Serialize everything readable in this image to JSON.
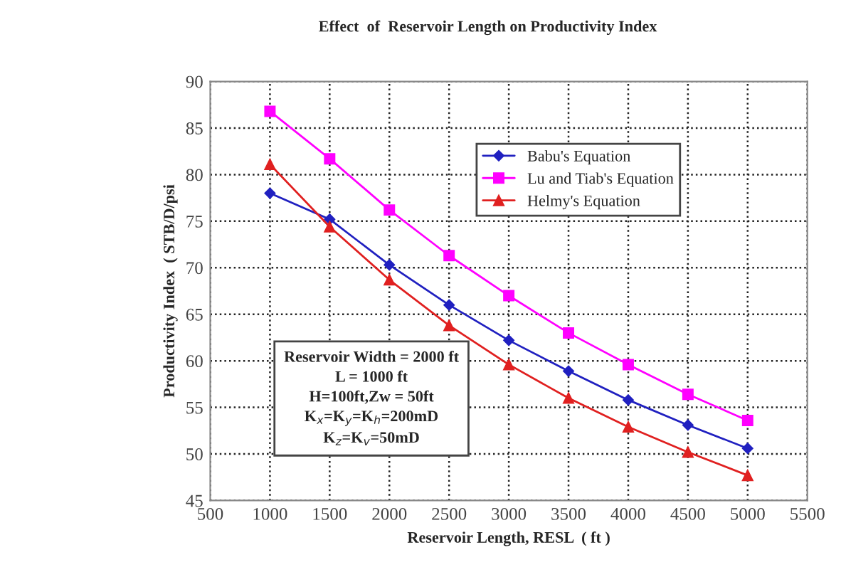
{
  "chart_data": {
    "type": "line",
    "title": "Effect  of  Reservoir Length on Productivity Index",
    "xlabel": "Reservoir Length, RESL  ( ft )",
    "ylabel": "Productivity Index  ( STB/D/psi",
    "x": [
      1000,
      1500,
      2000,
      2500,
      3000,
      3500,
      4000,
      4500,
      5000
    ],
    "series": [
      {
        "name": "Babu's Equation",
        "color": "#2020c0",
        "marker": "diamond",
        "values": [
          78.0,
          75.2,
          70.3,
          66.0,
          62.2,
          58.9,
          55.8,
          53.1,
          50.6
        ]
      },
      {
        "name": "Lu and Tiab's Equation",
        "color": "#ff00ff",
        "marker": "square",
        "values": [
          86.8,
          81.7,
          76.2,
          71.3,
          67.0,
          63.0,
          59.6,
          56.4,
          53.6
        ]
      },
      {
        "name": "Helmy's Equation",
        "color": "#e02020",
        "marker": "triangle",
        "values": [
          81.1,
          74.4,
          68.7,
          63.8,
          59.6,
          56.0,
          52.9,
          50.2,
          47.7
        ]
      }
    ],
    "annotations": [
      "Reservoir Width = 2000 ft",
      "L = 1000 ft",
      "H=100ft,Zw = 50ft",
      "K$_{x}$=K$_{y}$=K$_{h}$=200mD",
      "K$_{z}$=K$_{v}$=50mD"
    ],
    "xlim": [
      500,
      5500
    ],
    "xticks": [
      500,
      1000,
      1500,
      2000,
      2500,
      3000,
      3500,
      4000,
      4500,
      5000,
      5500
    ],
    "ylim": [
      45,
      90
    ],
    "yticks": [
      45,
      50,
      55,
      60,
      65,
      70,
      75,
      80,
      85,
      90
    ],
    "grid": true,
    "legend": "top right"
  }
}
